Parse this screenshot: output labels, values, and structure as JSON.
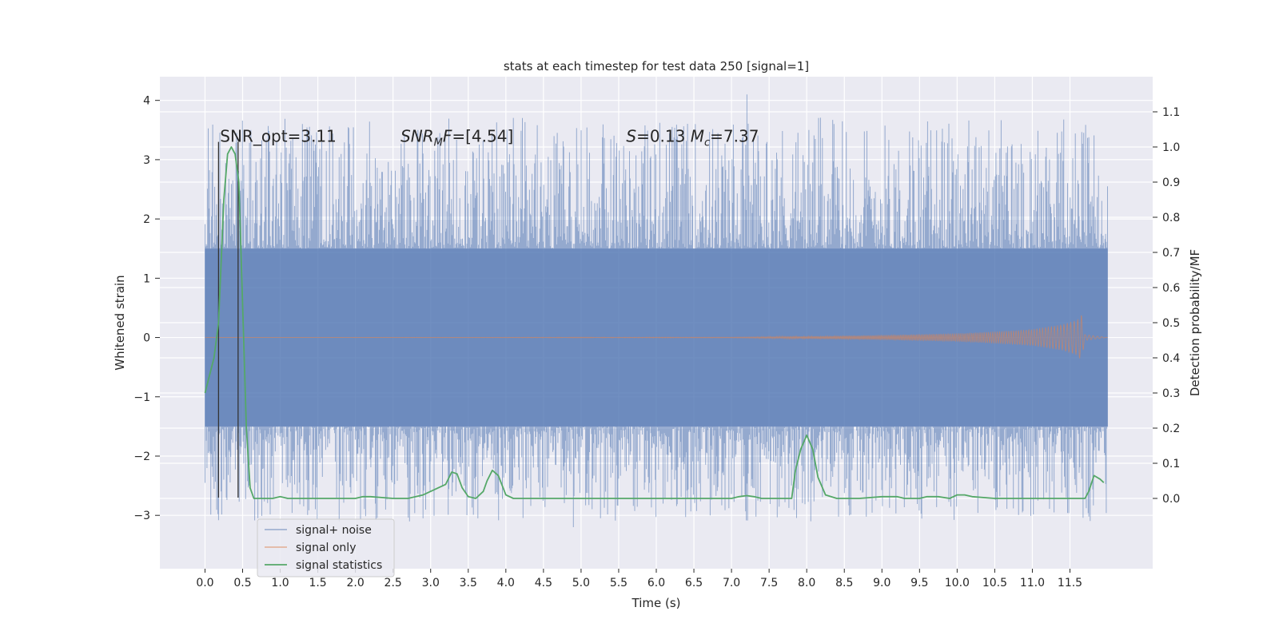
{
  "chart_data": {
    "type": "line",
    "title": "stats at each timestep for test data 250 [signal=1]",
    "xlabel": "Time (s)",
    "ylabel": "Whitened strain",
    "ylabel_right": "Detection probability/MF",
    "xlim": [
      -0.6,
      12.6
    ],
    "ylim": [
      -3.9,
      4.4
    ],
    "ylim_right": [
      -0.2,
      1.2
    ],
    "x_ticks": [
      0.0,
      0.5,
      1.0,
      1.5,
      2.0,
      2.5,
      3.0,
      3.5,
      4.0,
      4.5,
      5.0,
      5.5,
      6.0,
      6.5,
      7.0,
      7.5,
      8.0,
      8.5,
      9.0,
      9.5,
      10.0,
      10.5,
      11.0,
      11.5
    ],
    "x_tick_labels": [
      "0.0",
      "0.5",
      "1.0",
      "1.5",
      "2.0",
      "2.5",
      "3.0",
      "3.5",
      "4.0",
      "4.5",
      "5.0",
      "5.5",
      "6.0",
      "6.5",
      "7.0",
      "7.5",
      "8.0",
      "8.5",
      "9.0",
      "9.5",
      "10.0",
      "10.5",
      "11.0",
      "11.5"
    ],
    "y_ticks": [
      -3,
      -2,
      -1,
      0,
      1,
      2,
      3,
      4
    ],
    "y_tick_labels": [
      "−3",
      "−2",
      "−1",
      "0",
      "1",
      "2",
      "3",
      "4"
    ],
    "y_ticks_right": [
      0.0,
      0.1,
      0.2,
      0.3,
      0.4,
      0.5,
      0.6,
      0.7,
      0.8,
      0.9,
      1.0,
      1.1
    ],
    "y_tick_labels_right": [
      "0.0",
      "0.1",
      "0.2",
      "0.3",
      "0.4",
      "0.5",
      "0.6",
      "0.7",
      "0.8",
      "0.9",
      "1.0",
      "1.1"
    ],
    "grid": true,
    "legend_placement": "lower-left",
    "series": [
      {
        "name": "signal+ noise",
        "axis": "left",
        "color": "#4c72b0",
        "kind": "noise_band",
        "t_range": [
          0.0,
          12.0
        ],
        "core_band": [
          -1.5,
          1.5
        ],
        "max_peak": 4.1,
        "min_peak": -3.2
      },
      {
        "name": "signal only",
        "axis": "left",
        "color": "#dd8452",
        "kind": "chirp",
        "t_range": [
          0.0,
          12.0
        ],
        "envelope": [
          [
            0.0,
            0.0
          ],
          [
            7.0,
            0.005
          ],
          [
            8.0,
            0.02
          ],
          [
            9.0,
            0.04
          ],
          [
            10.0,
            0.07
          ],
          [
            10.5,
            0.1
          ],
          [
            11.0,
            0.14
          ],
          [
            11.4,
            0.22
          ],
          [
            11.6,
            0.3
          ],
          [
            11.65,
            0.4
          ],
          [
            11.7,
            0.05
          ],
          [
            12.0,
            0.0
          ]
        ]
      },
      {
        "name": "signal statistics",
        "axis": "right",
        "color": "#55a868",
        "kind": "line",
        "x": [
          0.0,
          0.12,
          0.18,
          0.25,
          0.3,
          0.35,
          0.4,
          0.45,
          0.5,
          0.55,
          0.6,
          0.65,
          0.7,
          0.8,
          0.9,
          1.0,
          1.1,
          1.5,
          2.0,
          2.1,
          2.2,
          2.5,
          2.7,
          2.9,
          3.0,
          3.1,
          3.2,
          3.28,
          3.35,
          3.42,
          3.5,
          3.6,
          3.7,
          3.75,
          3.82,
          3.9,
          4.0,
          4.1,
          4.3,
          5.0,
          5.5,
          6.0,
          6.5,
          7.0,
          7.1,
          7.2,
          7.3,
          7.4,
          7.5,
          7.6,
          7.8,
          7.85,
          7.92,
          8.0,
          8.08,
          8.15,
          8.25,
          8.4,
          8.7,
          9.0,
          9.2,
          9.3,
          9.5,
          9.6,
          9.75,
          9.9,
          10.0,
          10.1,
          10.2,
          10.5,
          11.0,
          11.5,
          11.7,
          11.75,
          11.82,
          11.9,
          11.95
        ],
        "y": [
          0.3,
          0.4,
          0.5,
          0.85,
          0.98,
          1.0,
          0.98,
          0.9,
          0.55,
          0.2,
          0.03,
          0.0,
          0.0,
          0.0,
          0.0,
          0.005,
          0.0,
          0.0,
          0.0,
          0.005,
          0.005,
          0.0,
          0.0,
          0.01,
          0.02,
          0.03,
          0.04,
          0.075,
          0.07,
          0.03,
          0.005,
          0.0,
          0.02,
          0.05,
          0.08,
          0.065,
          0.01,
          0.0,
          0.0,
          0.0,
          0.0,
          0.0,
          0.0,
          0.0,
          0.005,
          0.008,
          0.005,
          0.0,
          0.0,
          0.0,
          0.0,
          0.08,
          0.14,
          0.18,
          0.14,
          0.06,
          0.01,
          0.0,
          0.0,
          0.005,
          0.005,
          0.0,
          0.0,
          0.005,
          0.005,
          0.0,
          0.01,
          0.01,
          0.005,
          0.0,
          0.0,
          0.0,
          0.0,
          0.02,
          0.065,
          0.055,
          0.045
        ]
      }
    ],
    "vlines": [
      {
        "x": 0.18,
        "ymin": -2.7,
        "ymax": 3.3,
        "color": "#333333"
      },
      {
        "x": 0.44,
        "ymin": -2.7,
        "ymax": 3.3,
        "color": "#333333"
      }
    ],
    "annotations": [
      {
        "x": 0.2,
        "y": 3.3,
        "parts": [
          {
            "text": "SNR_opt=3.11",
            "italic": false
          }
        ]
      },
      {
        "x": 2.6,
        "y": 3.3,
        "parts": [
          {
            "text": "SNR",
            "italic": true
          },
          {
            "text": "M",
            "italic": true,
            "sub": true
          },
          {
            "text": "F",
            "italic": true
          },
          {
            "text": "=[4.54]",
            "italic": false
          }
        ]
      },
      {
        "x": 5.6,
        "y": 3.3,
        "parts": [
          {
            "text": "S",
            "italic": true
          },
          {
            "text": "=0.13   ",
            "italic": false
          },
          {
            "text": "M",
            "italic": true
          },
          {
            "text": "c",
            "italic": true,
            "sub": true
          },
          {
            "text": "=7.37",
            "italic": false
          }
        ]
      }
    ]
  }
}
